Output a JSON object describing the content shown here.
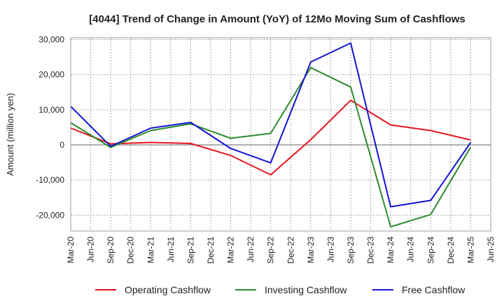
{
  "chart_data": {
    "type": "line",
    "title": "[4044]  Trend of Change in Amount (YoY) of 12Mo Moving Sum of Cashflows",
    "xlabel": "",
    "ylabel": "Amount (million yen)",
    "ylim": [
      -24500,
      30500
    ],
    "yticks": [
      30000,
      20000,
      10000,
      0,
      -10000,
      -20000
    ],
    "ytick_labels": [
      "30,000",
      "20,000",
      "10,000",
      "0",
      "-10,000",
      "-20,000"
    ],
    "categories": [
      "Mar-20",
      "Jun-20",
      "Sep-20",
      "Dec-20",
      "Mar-21",
      "Jun-21",
      "Sep-21",
      "Dec-21",
      "Mar-22",
      "Jun-22",
      "Sep-22",
      "Dec-22",
      "Mar-23",
      "Jun-23",
      "Sep-23",
      "Dec-23",
      "Mar-24",
      "Jun-24",
      "Sep-24",
      "Dec-24",
      "Mar-25",
      "Jun-25"
    ],
    "grid": true,
    "legend_position": "bottom",
    "series": [
      {
        "name": "Operating Cashflow",
        "color": "#e8141c",
        "values": [
          4800,
          null,
          300,
          null,
          700,
          null,
          400,
          null,
          -3000,
          null,
          -8500,
          null,
          1500,
          null,
          12700,
          null,
          5700,
          null,
          4100,
          null,
          1400,
          null
        ]
      },
      {
        "name": "Investing Cashflow",
        "color": "#2e8b2e",
        "values": [
          6300,
          null,
          -700,
          null,
          4100,
          null,
          6000,
          null,
          1900,
          null,
          3300,
          null,
          22000,
          null,
          16500,
          null,
          -23300,
          null,
          -19800,
          null,
          -600,
          null
        ]
      },
      {
        "name": "Free Cashflow",
        "color": "#1414d4",
        "values": [
          11000,
          null,
          -400,
          null,
          4800,
          null,
          6400,
          null,
          -1000,
          null,
          -5100,
          null,
          23600,
          null,
          29000,
          null,
          -17600,
          null,
          -15800,
          null,
          700,
          null
        ]
      }
    ]
  }
}
